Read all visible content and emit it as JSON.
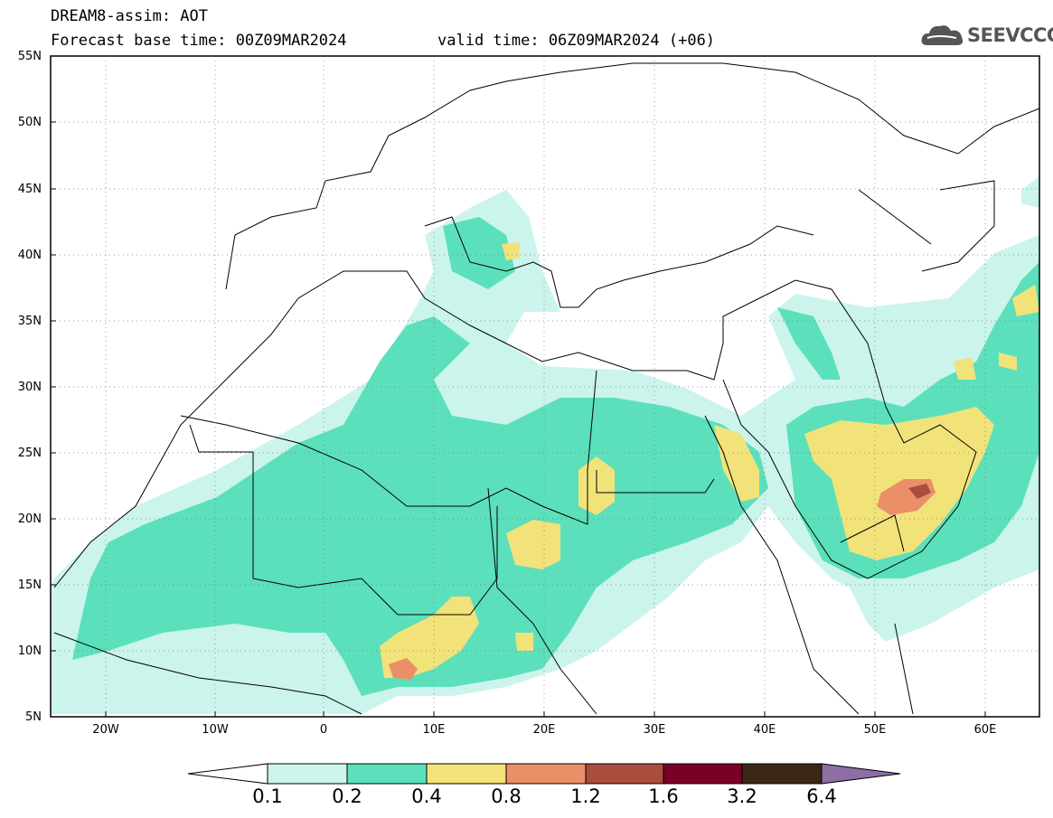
{
  "header": {
    "title": "DREAM8-assim: AOT",
    "base_time": "Forecast base time: 00Z09MAR2024",
    "valid_time": "valid time: 06Z09MAR2024 (+06)"
  },
  "logo": {
    "text": "SEEVCCC",
    "icon": "cloud-icon"
  },
  "map": {
    "extent": {
      "lon": [
        -25,
        65
      ],
      "lat": [
        5,
        55
      ]
    },
    "lat_labels": [
      "55N",
      "50N",
      "45N",
      "40N",
      "35N",
      "30N",
      "25N",
      "20N",
      "15N",
      "10N",
      "5N"
    ],
    "lon_labels": [
      "20W",
      "10W",
      "0",
      "10E",
      "20E",
      "30E",
      "40E",
      "50E",
      "60E"
    ],
    "grid": "dotted",
    "plume_max_region": "Arabian Peninsula"
  },
  "colorbar": {
    "labels": [
      "0.1",
      "0.2",
      "0.4",
      "0.8",
      "1.2",
      "1.6",
      "3.2",
      "6.4"
    ],
    "colors": [
      "#cbf4ec",
      "#5be0bb",
      "#f2e27a",
      "#eb8f69",
      "#aa4c3e",
      "#7a0026",
      "#3c2716",
      "#8d6fa6"
    ]
  },
  "colors": {
    "level1": "#cbf4ec",
    "level2": "#5be0bb",
    "level3": "#f2e27a",
    "level4": "#eb8f69",
    "level5": "#aa4c3e",
    "coast": "#000000"
  }
}
